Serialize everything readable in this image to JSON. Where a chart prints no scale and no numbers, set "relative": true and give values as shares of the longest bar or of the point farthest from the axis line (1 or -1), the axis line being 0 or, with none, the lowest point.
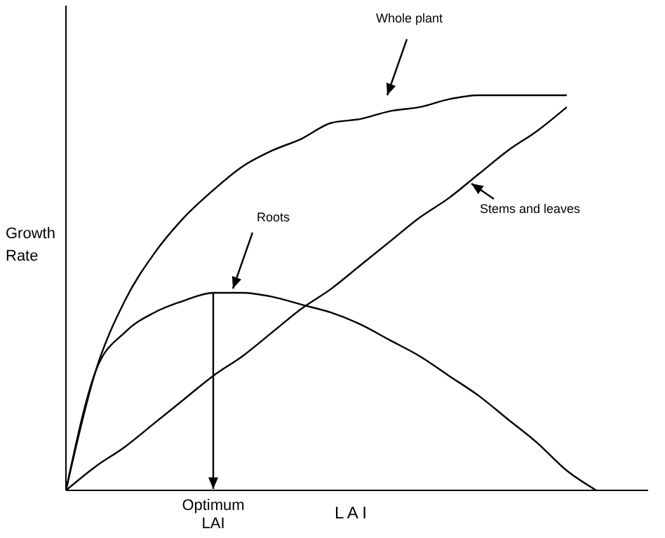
{
  "chart_data": {
    "type": "line",
    "relative": true,
    "xlabel": "L A I",
    "ylabel": "Growth Rate",
    "categories": [
      null,
      null,
      null,
      null,
      null,
      null,
      null,
      null,
      null,
      null,
      null,
      null,
      null,
      null,
      null,
      null,
      null,
      null,
      null
    ],
    "series": [
      {
        "name": "Whole plant",
        "color": "#000000",
        "values": [
          0,
          0.3,
          0.48,
          0.6,
          0.69,
          0.76,
          0.82,
          0.86,
          0.89,
          0.93,
          0.94,
          0.96,
          0.97,
          0.99,
          1,
          1,
          1,
          1,
          null
        ]
      },
      {
        "name": "Roots",
        "color": "#000000",
        "values": [
          0,
          0.3,
          0.4,
          0.45,
          0.48,
          0.5,
          0.5,
          0.49,
          0.47,
          0.45,
          0.42,
          0.38,
          0.34,
          0.29,
          0.24,
          0.18,
          0.12,
          0.05,
          0
        ]
      },
      {
        "name": "Stems and leaves",
        "color": "#000000",
        "values": [
          0,
          0.06,
          0.11,
          0.17,
          0.23,
          0.29,
          0.34,
          0.4,
          0.46,
          0.51,
          0.57,
          0.63,
          0.69,
          0.74,
          0.8,
          0.86,
          0.91,
          0.97,
          null
        ]
      }
    ],
    "annotations": [
      "Optimum LAI"
    ]
  }
}
